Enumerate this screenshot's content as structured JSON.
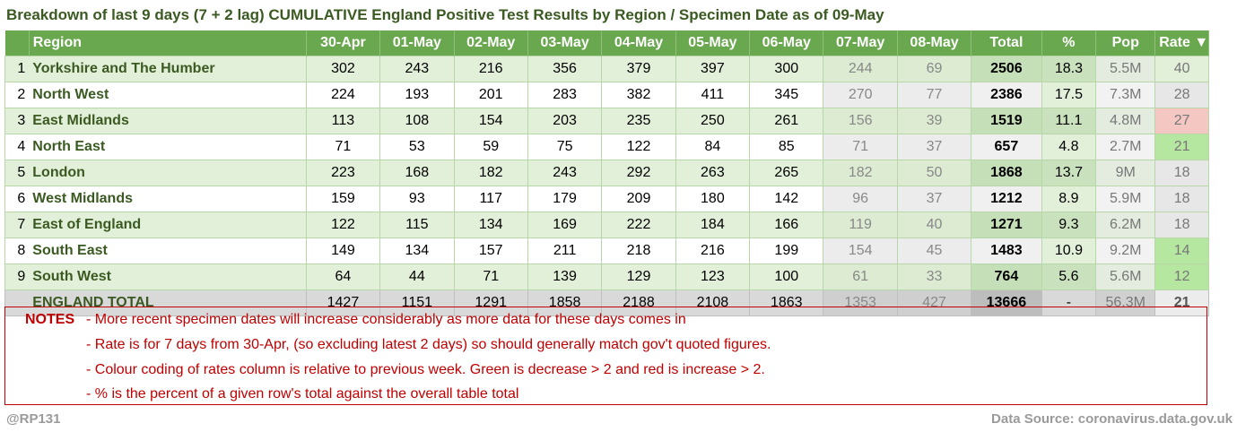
{
  "title": "Breakdown of last 9 days (7 + 2 lag) CUMULATIVE England Positive Test Results by Region / Specimen Date as of 09-May",
  "headers": {
    "region": "Region",
    "dates": [
      "30-Apr",
      "01-May",
      "02-May",
      "03-May",
      "04-May",
      "05-May",
      "06-May",
      "07-May",
      "08-May"
    ],
    "total": "Total",
    "pct": "%",
    "pop": "Pop",
    "rate": "Rate ▼"
  },
  "rows": [
    {
      "idx": "1",
      "region": "Yorkshire and The Humber",
      "values": [
        "302",
        "243",
        "216",
        "356",
        "379",
        "397",
        "300",
        "244",
        "69"
      ],
      "total": "2506",
      "pct": "18.3",
      "pop": "5.5M",
      "rate": "40",
      "rate_color": "#e2efd9"
    },
    {
      "idx": "2",
      "region": "North West",
      "values": [
        "224",
        "193",
        "201",
        "283",
        "382",
        "411",
        "345",
        "270",
        "77"
      ],
      "total": "2386",
      "pct": "17.5",
      "pop": "7.3M",
      "rate": "28",
      "rate_color": "#e7e7e7"
    },
    {
      "idx": "3",
      "region": "East Midlands",
      "values": [
        "113",
        "108",
        "154",
        "203",
        "235",
        "250",
        "261",
        "156",
        "39"
      ],
      "total": "1519",
      "pct": "11.1",
      "pop": "4.8M",
      "rate": "27",
      "rate_color": "#f4c7c3"
    },
    {
      "idx": "4",
      "region": "North East",
      "values": [
        "71",
        "53",
        "59",
        "75",
        "122",
        "84",
        "85",
        "71",
        "37"
      ],
      "total": "657",
      "pct": "4.8",
      "pop": "2.7M",
      "rate": "21",
      "rate_color": "#b6e7a0"
    },
    {
      "idx": "5",
      "region": "London",
      "values": [
        "223",
        "168",
        "182",
        "243",
        "292",
        "263",
        "265",
        "182",
        "50"
      ],
      "total": "1868",
      "pct": "13.7",
      "pop": "9M",
      "rate": "18",
      "rate_color": "#e7e7e7"
    },
    {
      "idx": "6",
      "region": "West Midlands",
      "values": [
        "159",
        "93",
        "117",
        "179",
        "209",
        "180",
        "142",
        "96",
        "37"
      ],
      "total": "1212",
      "pct": "8.9",
      "pop": "5.9M",
      "rate": "18",
      "rate_color": "#e7e7e7"
    },
    {
      "idx": "7",
      "region": "East of England",
      "values": [
        "122",
        "115",
        "134",
        "169",
        "222",
        "184",
        "166",
        "119",
        "40"
      ],
      "total": "1271",
      "pct": "9.3",
      "pop": "6.2M",
      "rate": "18",
      "rate_color": "#e7e7e7"
    },
    {
      "idx": "8",
      "region": "South East",
      "values": [
        "149",
        "134",
        "157",
        "211",
        "218",
        "216",
        "199",
        "154",
        "45"
      ],
      "total": "1483",
      "pct": "10.9",
      "pop": "9.2M",
      "rate": "14",
      "rate_color": "#b6e7a0"
    },
    {
      "idx": "9",
      "region": "South West",
      "values": [
        "64",
        "44",
        "71",
        "139",
        "129",
        "123",
        "100",
        "61",
        "33"
      ],
      "total": "764",
      "pct": "5.6",
      "pop": "5.6M",
      "rate": "12",
      "rate_color": "#b6e7a0"
    }
  ],
  "total_row": {
    "region": "ENGLAND TOTAL",
    "values": [
      "1427",
      "1151",
      "1291",
      "1858",
      "2188",
      "2108",
      "1863",
      "1353",
      "427"
    ],
    "total": "13666",
    "pct": "-",
    "pop": "56.3M",
    "rate": "21"
  },
  "notes": {
    "label": "NOTES",
    "lines": [
      "- More recent specimen dates will increase considerably as more data for these days comes in",
      "- Rate is for 7 days from 30-Apr, (so excluding latest 2 days) so should generally match gov't quoted figures.",
      "- Colour coding of rates column is relative to previous week. Green is decrease > 2 and red is increase > 2.",
      "- % is the percent of a given row's total against the overall table total"
    ]
  },
  "footer": {
    "handle": "@RP131",
    "source": "Data Source: coronavirus.data.gov.uk"
  }
}
